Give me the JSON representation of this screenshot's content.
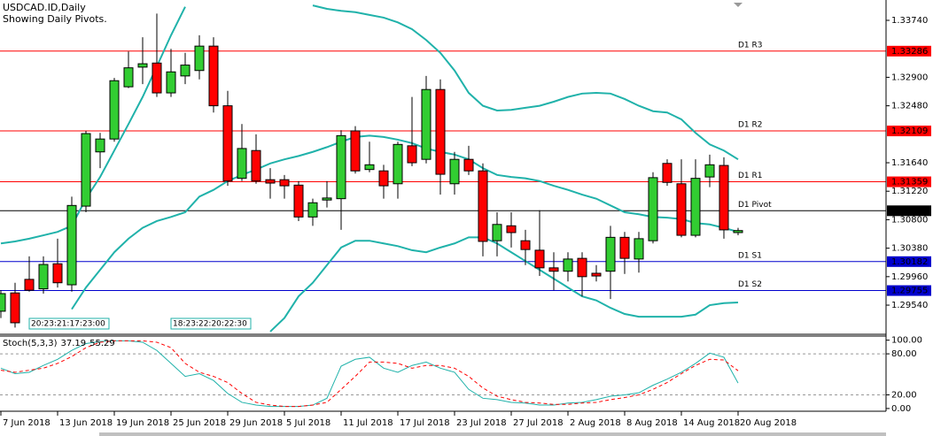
{
  "header": {
    "symbol": "USDCAD.ID,Daily",
    "note": "Showing Daily Pivots."
  },
  "chart_data": [
    {
      "type": "candlestick",
      "categories": [
        "7 Jun 2018",
        null,
        null,
        null,
        "13 Jun 2018",
        null,
        null,
        null,
        "19 Jun 2018",
        null,
        null,
        null,
        "25 Jun 2018",
        null,
        null,
        null,
        "29 Jun 2018",
        null,
        null,
        null,
        "5 Jul 2018",
        null,
        null,
        null,
        "11 Jul 2018",
        null,
        null,
        null,
        "17 Jul 2018",
        null,
        null,
        null,
        "23 Jul 2018",
        null,
        null,
        null,
        "27 Jul 2018",
        null,
        null,
        null,
        "2 Aug 2018",
        null,
        null,
        null,
        "8 Aug 2018",
        null,
        null,
        null,
        "14 Aug 2018",
        null,
        null,
        null,
        "20 Aug 2018"
      ],
      "open": [
        1.2945,
        1.2972,
        1.2992,
        1.2978,
        1.3015,
        1.2984,
        1.31,
        1.318,
        1.3199,
        1.3276,
        1.3305,
        1.3311,
        1.3267,
        1.3292,
        1.33,
        1.3336,
        1.3248,
        1.3141,
        1.3182,
        1.3139,
        1.3139,
        1.3131,
        1.3084,
        1.3109,
        1.3111,
        1.3211,
        1.3154,
        1.3152,
        1.3133,
        1.3189,
        1.3169,
        1.3272,
        1.3133,
        1.3169,
        1.3152,
        1.3049,
        1.3071,
        1.3049,
        1.3035,
        1.3009,
        1.3004,
        1.3023,
        1.3001,
        1.3004,
        1.3054,
        1.3022,
        1.3049,
        1.3163,
        1.3133,
        1.3057,
        1.3143,
        1.316,
        1.3061
      ],
      "high": [
        1.2976,
        1.2987,
        1.3026,
        1.3026,
        1.3052,
        1.3114,
        1.3211,
        1.3208,
        1.3289,
        1.3328,
        1.3349,
        1.3384,
        1.3332,
        1.3326,
        1.3352,
        1.3349,
        1.327,
        1.3221,
        1.3206,
        1.3156,
        1.3146,
        1.3137,
        1.3111,
        1.3137,
        1.3212,
        1.3218,
        1.3195,
        1.3161,
        1.3195,
        1.3261,
        1.3292,
        1.3287,
        1.318,
        1.3189,
        1.3163,
        1.3091,
        1.3091,
        1.3065,
        1.3094,
        1.3032,
        1.3032,
        1.3032,
        1.3013,
        1.3071,
        1.3062,
        1.3062,
        1.315,
        1.3169,
        1.3169,
        1.3169,
        1.3176,
        1.3172,
        1.3068
      ],
      "low": [
        1.2935,
        1.2921,
        1.2974,
        1.2971,
        1.298,
        1.2974,
        1.3091,
        1.3156,
        1.3195,
        1.3274,
        1.328,
        1.3261,
        1.3261,
        1.328,
        1.3287,
        1.3238,
        1.313,
        1.3137,
        1.3133,
        1.3111,
        1.3111,
        1.3078,
        1.3071,
        1.3098,
        1.3065,
        1.3148,
        1.315,
        1.3111,
        1.3111,
        1.3159,
        1.3163,
        1.3117,
        1.3117,
        1.3146,
        1.3026,
        1.3026,
        1.3039,
        1.3013,
        1.2997,
        1.2976,
        1.2989,
        1.2967,
        1.2989,
        1.2963,
        1.3,
        1.3002,
        1.3045,
        1.313,
        1.3054,
        1.3054,
        1.3128,
        1.3052,
        1.3057
      ],
      "close": [
        1.2971,
        1.2928,
        1.2976,
        1.3014,
        1.2987,
        1.3101,
        1.3207,
        1.3199,
        1.3285,
        1.3304,
        1.331,
        1.3267,
        1.3298,
        1.3308,
        1.3336,
        1.3248,
        1.3137,
        1.3185,
        1.3137,
        1.3134,
        1.313,
        1.3084,
        1.3105,
        1.3112,
        1.3204,
        1.3152,
        1.3161,
        1.313,
        1.3191,
        1.3164,
        1.3272,
        1.3147,
        1.3169,
        1.3152,
        1.3048,
        1.3073,
        1.3061,
        1.3036,
        1.3009,
        1.3004,
        1.3022,
        1.2996,
        1.2997,
        1.3054,
        1.3023,
        1.3052,
        1.3142,
        1.3135,
        1.3057,
        1.3141,
        1.3161,
        1.3065,
        1.3064
      ],
      "up_color": "#32cd32",
      "down_color": "#ff0000",
      "series": [
        {
          "color": "#20b2aa",
          "values": [
            1.3045,
            1.3048,
            1.3052,
            1.3057,
            1.3062,
            1.3071,
            1.3111,
            1.3143,
            1.3182,
            1.3221,
            1.3261,
            1.3306,
            1.3352,
            1.3394,
            null,
            null,
            null,
            null,
            null,
            null,
            null,
            null,
            1.3396,
            1.3391,
            1.3388,
            1.3386,
            1.3382,
            1.3378,
            1.3371,
            1.3361,
            1.3345,
            1.3326,
            1.33,
            1.3267,
            1.3248,
            1.3241,
            1.3242,
            1.3245,
            1.3248,
            1.3254,
            1.3261,
            1.3266,
            1.3267,
            1.3266,
            1.3258,
            1.3248,
            1.324,
            1.3238,
            1.3228,
            1.3208,
            1.3191,
            1.3182,
            1.3169
          ]
        },
        {
          "color": "#20b2aa",
          "values": [
            null,
            null,
            null,
            null,
            null,
            1.2948,
            1.298,
            1.3006,
            1.3032,
            1.3052,
            1.3068,
            1.3078,
            1.3084,
            1.3091,
            1.3114,
            1.3124,
            1.3137,
            1.3146,
            1.3154,
            1.3163,
            1.3169,
            1.3174,
            1.318,
            1.3187,
            1.3195,
            1.3202,
            1.3204,
            1.3202,
            1.3198,
            1.3193,
            1.3185,
            1.318,
            1.3176,
            1.3169,
            1.3156,
            1.3146,
            1.3143,
            1.3141,
            1.3137,
            1.313,
            1.3124,
            1.3117,
            1.3111,
            1.3101,
            1.3091,
            1.3088,
            1.3084,
            1.3083,
            1.3081,
            1.3075,
            1.3073,
            1.3068,
            1.3062
          ]
        },
        {
          "color": "#20b2aa",
          "values": [
            null,
            null,
            null,
            null,
            null,
            null,
            null,
            null,
            null,
            null,
            null,
            null,
            null,
            null,
            null,
            null,
            null,
            null,
            null,
            1.2915,
            1.2935,
            1.2967,
            1.2987,
            1.3013,
            1.3039,
            1.3049,
            1.3049,
            1.3045,
            1.3041,
            1.3035,
            1.3032,
            1.3039,
            1.3045,
            1.3054,
            1.3054,
            1.3045,
            1.3032,
            1.3019,
            1.3006,
            1.2993,
            1.298,
            1.2967,
            1.2961,
            1.295,
            1.2941,
            1.2937,
            1.2937,
            1.2937,
            1.2937,
            1.294,
            1.2954,
            1.2957,
            1.2958
          ]
        }
      ],
      "pivots": [
        {
          "name": "D1 R3",
          "value": 1.33286,
          "color": "#ff0000"
        },
        {
          "name": "D1 R2",
          "value": 1.32109,
          "color": "#ff0000"
        },
        {
          "name": "D1 R1",
          "value": 1.31359,
          "color": "#ff0000"
        },
        {
          "name": "D1 Pivot",
          "value": 1.30932,
          "color": "#000000"
        },
        {
          "name": "D1 S1",
          "value": 1.30182,
          "color": "#0000cd"
        },
        {
          "name": "D1 S2",
          "value": 1.29755,
          "color": "#0000cd"
        }
      ],
      "annotations": [
        "20:23:21:17:23:00",
        "18:23:22:20:22:30"
      ],
      "ylim": [
        1.2911,
        1.3404
      ],
      "yticks": [
        {
          "value": 1.3374,
          "label": "1.33740"
        },
        {
          "value": 1.329,
          "label": "1.32900"
        },
        {
          "value": 1.3248,
          "label": "1.32480"
        },
        {
          "value": 1.3164,
          "label": "1.31640"
        },
        {
          "value": 1.3122,
          "label": "1.31220"
        },
        {
          "value": 1.308,
          "label": "1.30800"
        },
        {
          "value": 1.3038,
          "label": "1.30380"
        },
        {
          "value": 1.2996,
          "label": "1.29960"
        },
        {
          "value": 1.2954,
          "label": "1.29540"
        }
      ]
    },
    {
      "type": "line",
      "title": "Stoch(5,3,3)",
      "series": [
        {
          "color": "#20b2aa",
          "style": "solid",
          "values": [
            59,
            51,
            53,
            63,
            72,
            85,
            95,
            98,
            99,
            99,
            97,
            85,
            66,
            47,
            51,
            41,
            22,
            9,
            5,
            3,
            3,
            3,
            5,
            15,
            62,
            72,
            75,
            59,
            53,
            63,
            68,
            59,
            53,
            28,
            15,
            13,
            9,
            8,
            5,
            5,
            8,
            9,
            13,
            18,
            20,
            23,
            34,
            43,
            53,
            66,
            81,
            75,
            37.19
          ]
        },
        {
          "color": "#ff0000",
          "style": "dashed",
          "values": [
            56,
            53,
            56,
            59,
            66,
            76,
            89,
            97,
            99,
            99,
            99,
            97,
            89,
            66,
            53,
            47,
            38,
            22,
            9,
            5,
            3,
            3,
            5,
            9,
            28,
            47,
            68,
            68,
            66,
            59,
            63,
            63,
            59,
            47,
            30,
            18,
            13,
            9,
            8,
            6,
            6,
            8,
            9,
            13,
            16,
            20,
            28,
            38,
            51,
            63,
            72,
            71,
            55.29
          ]
        }
      ],
      "levels": [
        80,
        20
      ],
      "ylim": [
        -4,
        106
      ],
      "yticks": [
        {
          "value": 100,
          "label": "100.00"
        },
        {
          "value": 80,
          "label": "80.00"
        },
        {
          "value": 20,
          "label": "20.00"
        },
        {
          "value": 0,
          "label": "0.00"
        }
      ]
    }
  ]
}
